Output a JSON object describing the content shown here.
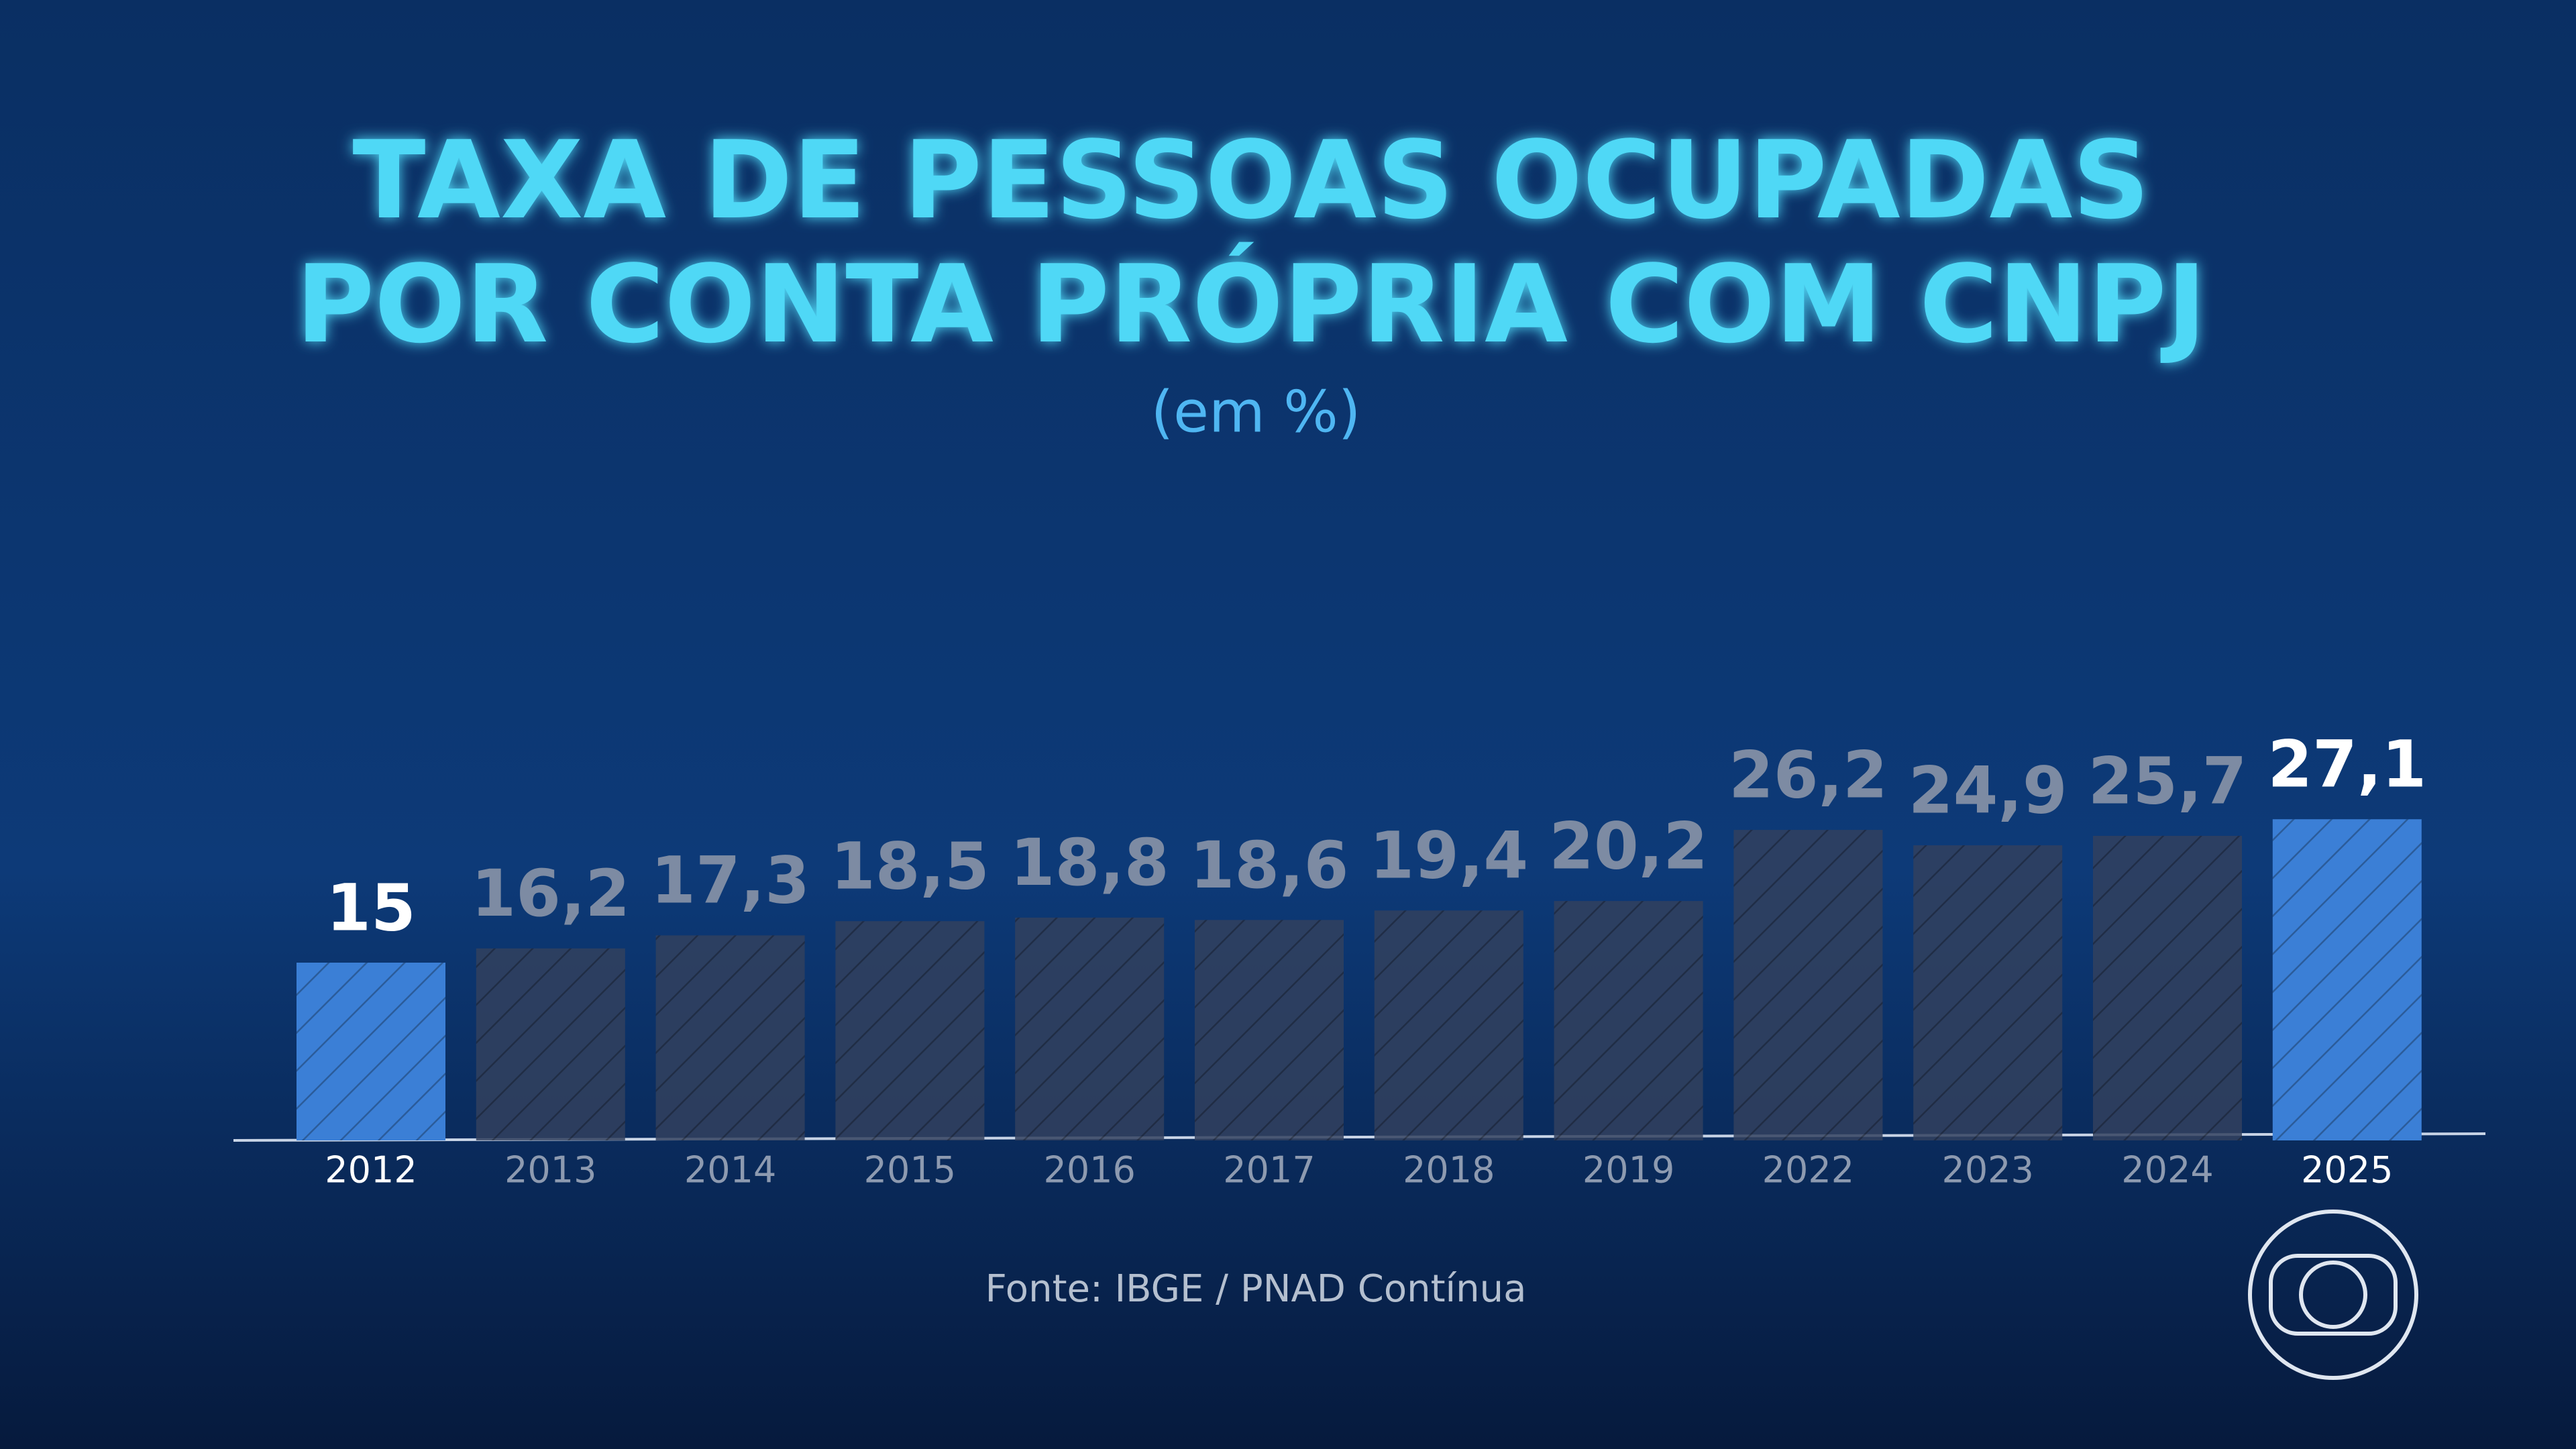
{
  "chart_data": {
    "type": "bar",
    "title": [
      "TAXA DE PESSOAS OCUPADAS",
      "POR CONTA PRÓPRIA COM CNPJ"
    ],
    "subtitle": "(em %)",
    "categories": [
      "2012",
      "2013",
      "2014",
      "2015",
      "2016",
      "2017",
      "2018",
      "2019",
      "2022",
      "2023",
      "2024",
      "2025"
    ],
    "values": [
      15,
      16.2,
      17.3,
      18.5,
      18.8,
      18.6,
      19.4,
      20.2,
      26.2,
      24.9,
      25.7,
      27.1
    ],
    "value_labels": [
      "15",
      "16,2",
      "17,3",
      "18,5",
      "18,8",
      "18,6",
      "19,4",
      "20,2",
      "26,2",
      "24,9",
      "25,7",
      "27,1"
    ],
    "highlight": [
      true,
      false,
      false,
      false,
      false,
      false,
      false,
      false,
      false,
      false,
      false,
      true
    ],
    "color": "#33415e",
    "highlight_color": "#3b7fd6",
    "ylim": [
      0,
      30
    ],
    "source": "Fonte: IBGE / PNAD Contínua"
  }
}
